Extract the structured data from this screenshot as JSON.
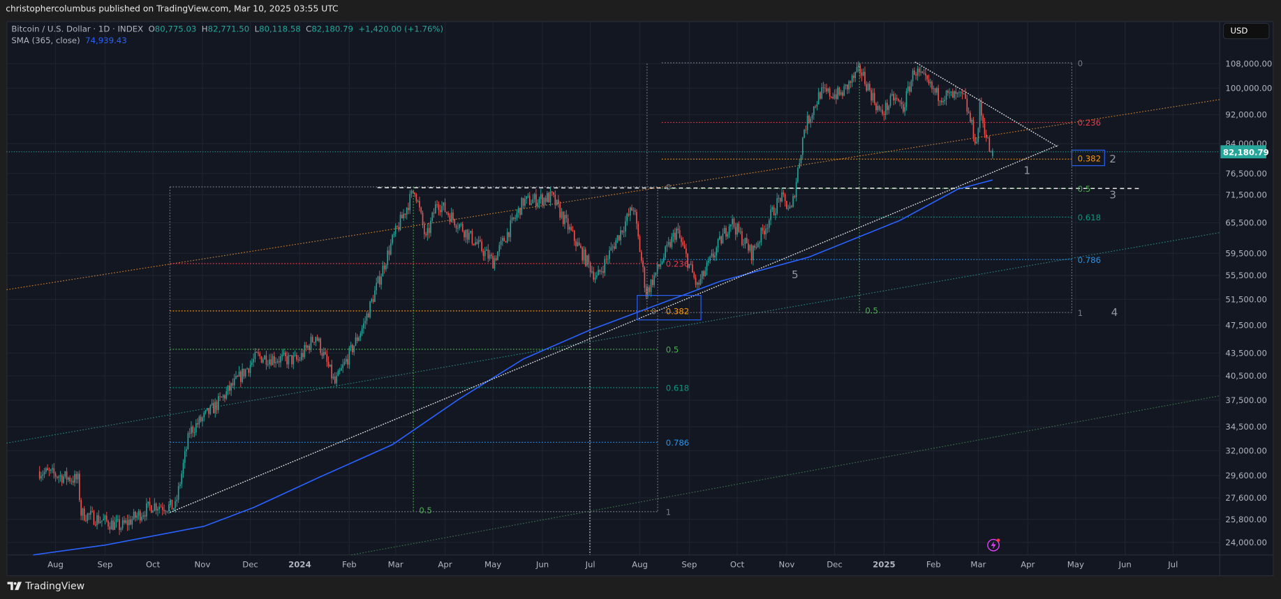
{
  "header": {
    "publisher_line": "christophercolumbus published on TradingView.com, Mar 10, 2025 03:55 UTC"
  },
  "legend": {
    "symbol": "Bitcoin / U.S. Dollar · 1D · INDEX",
    "o_label": "O",
    "o": "80,775.03",
    "h_label": "H",
    "h": "82,771.50",
    "l_label": "L",
    "l": "80,118.58",
    "c_label": "C",
    "c": "82,180.79",
    "change": "+1,420.00 (+1.76%)",
    "sma_label": "SMA (365, close)",
    "sma_value": "74,939.43"
  },
  "price_axis": {
    "currency": "USD",
    "last_price": "82,180.79",
    "ticks": [
      "108,000.00",
      "100,000.00",
      "92,000.00",
      "84,000.00",
      "76,500.00",
      "71,500.00",
      "65,500.00",
      "59,500.00",
      "55,500.00",
      "51,500.00",
      "47,500.00",
      "43,500.00",
      "40,500.00",
      "37,500.00",
      "34,500.00",
      "32,000.00",
      "29,600.00",
      "27,600.00",
      "25,800.00",
      "24,000.00"
    ]
  },
  "time_axis": {
    "labels": [
      "Aug",
      "Sep",
      "Oct",
      "Nov",
      "Dec",
      "2024",
      "Feb",
      "Mar",
      "Apr",
      "May",
      "Jun",
      "Jul",
      "Aug",
      "Sep",
      "Oct",
      "Nov",
      "Dec",
      "2025",
      "Feb",
      "Mar",
      "Apr",
      "May",
      "Jun",
      "Jul"
    ]
  },
  "drawings": {
    "fib_left": {
      "levels": [
        "0",
        "0.236",
        "0.382",
        "0.5",
        "0.618",
        "0.786",
        "1"
      ]
    },
    "fib_right": {
      "levels": [
        "0",
        "0.236",
        "0.382",
        "0.5",
        "0.618",
        "0.786",
        "1"
      ]
    },
    "fib_anchor_zero": "0",
    "time_fib_left": "0.5",
    "time_fib_right": "0.5",
    "wave_labels": [
      "1",
      "2",
      "3",
      "4",
      "5"
    ]
  },
  "footer": {
    "brand": "TradingView"
  },
  "colors": {
    "background": "#131722",
    "up": "#26a69a",
    "down": "#ef5350",
    "sma": "#2962ff",
    "fib_0": "#787b86",
    "fib_0236": "#f23645",
    "fib_0382": "#ff9800",
    "fib_05": "#4caf50",
    "fib_0618": "#089981",
    "fib_0786": "#2196f3",
    "last_price_tag": "#26a69a"
  },
  "chart_data": {
    "type": "line",
    "scale": "log",
    "grid": true,
    "ylim": [
      23500,
      112000
    ],
    "xlim": [
      "2023-07-22",
      "2025-07-31"
    ],
    "series": [
      {
        "name": "Bitcoin / U.S. Dollar",
        "style": "candles (approximate close path)",
        "x": [
          "2023-07-22",
          "2023-08-15",
          "2023-08-17",
          "2023-09-11",
          "2023-10-01",
          "2023-10-15",
          "2023-10-24",
          "2023-11-10",
          "2023-12-05",
          "2023-12-31",
          "2024-01-11",
          "2024-01-23",
          "2024-02-10",
          "2024-02-28",
          "2024-03-13",
          "2024-03-20",
          "2024-03-27",
          "2024-04-13",
          "2024-05-01",
          "2024-05-20",
          "2024-06-07",
          "2024-06-24",
          "2024-07-05",
          "2024-07-28",
          "2024-08-05",
          "2024-08-24",
          "2024-09-06",
          "2024-09-27",
          "2024-10-10",
          "2024-10-28",
          "2024-11-04",
          "2024-11-12",
          "2024-11-22",
          "2024-12-05",
          "2024-12-17",
          "2024-12-30",
          "2025-01-07",
          "2025-01-13",
          "2025-01-20",
          "2025-02-03",
          "2025-02-20",
          "2025-02-28",
          "2025-03-02",
          "2025-03-09",
          "2025-03-10"
        ],
        "y": [
          30000,
          29200,
          26300,
          25200,
          27000,
          26800,
          34000,
          37000,
          43000,
          42500,
          46000,
          39500,
          47500,
          62000,
          73000,
          62000,
          70000,
          64000,
          58000,
          70000,
          71000,
          60500,
          55000,
          69000,
          52500,
          64000,
          53500,
          66000,
          59500,
          71000,
          68000,
          88000,
          98500,
          98000,
          106000,
          92000,
          97000,
          94000,
          106000,
          98000,
          97000,
          84000,
          94000,
          80700,
          82180.79
        ]
      },
      {
        "name": "SMA (365, close)",
        "x": [
          "2023-07-18",
          "2023-09-01",
          "2023-11-02",
          "2023-12-03",
          "2024-01-13",
          "2024-02-28",
          "2024-04-09",
          "2024-05-20",
          "2024-06-30",
          "2024-08-10",
          "2024-09-20",
          "2024-11-15",
          "2025-01-11",
          "2025-02-16",
          "2025-03-10"
        ],
        "y": [
          23070,
          23800,
          25240,
          26770,
          29430,
          32620,
          37550,
          42690,
          46700,
          50440,
          54470,
          58820,
          66010,
          72770,
          74939.43
        ]
      }
    ]
  }
}
